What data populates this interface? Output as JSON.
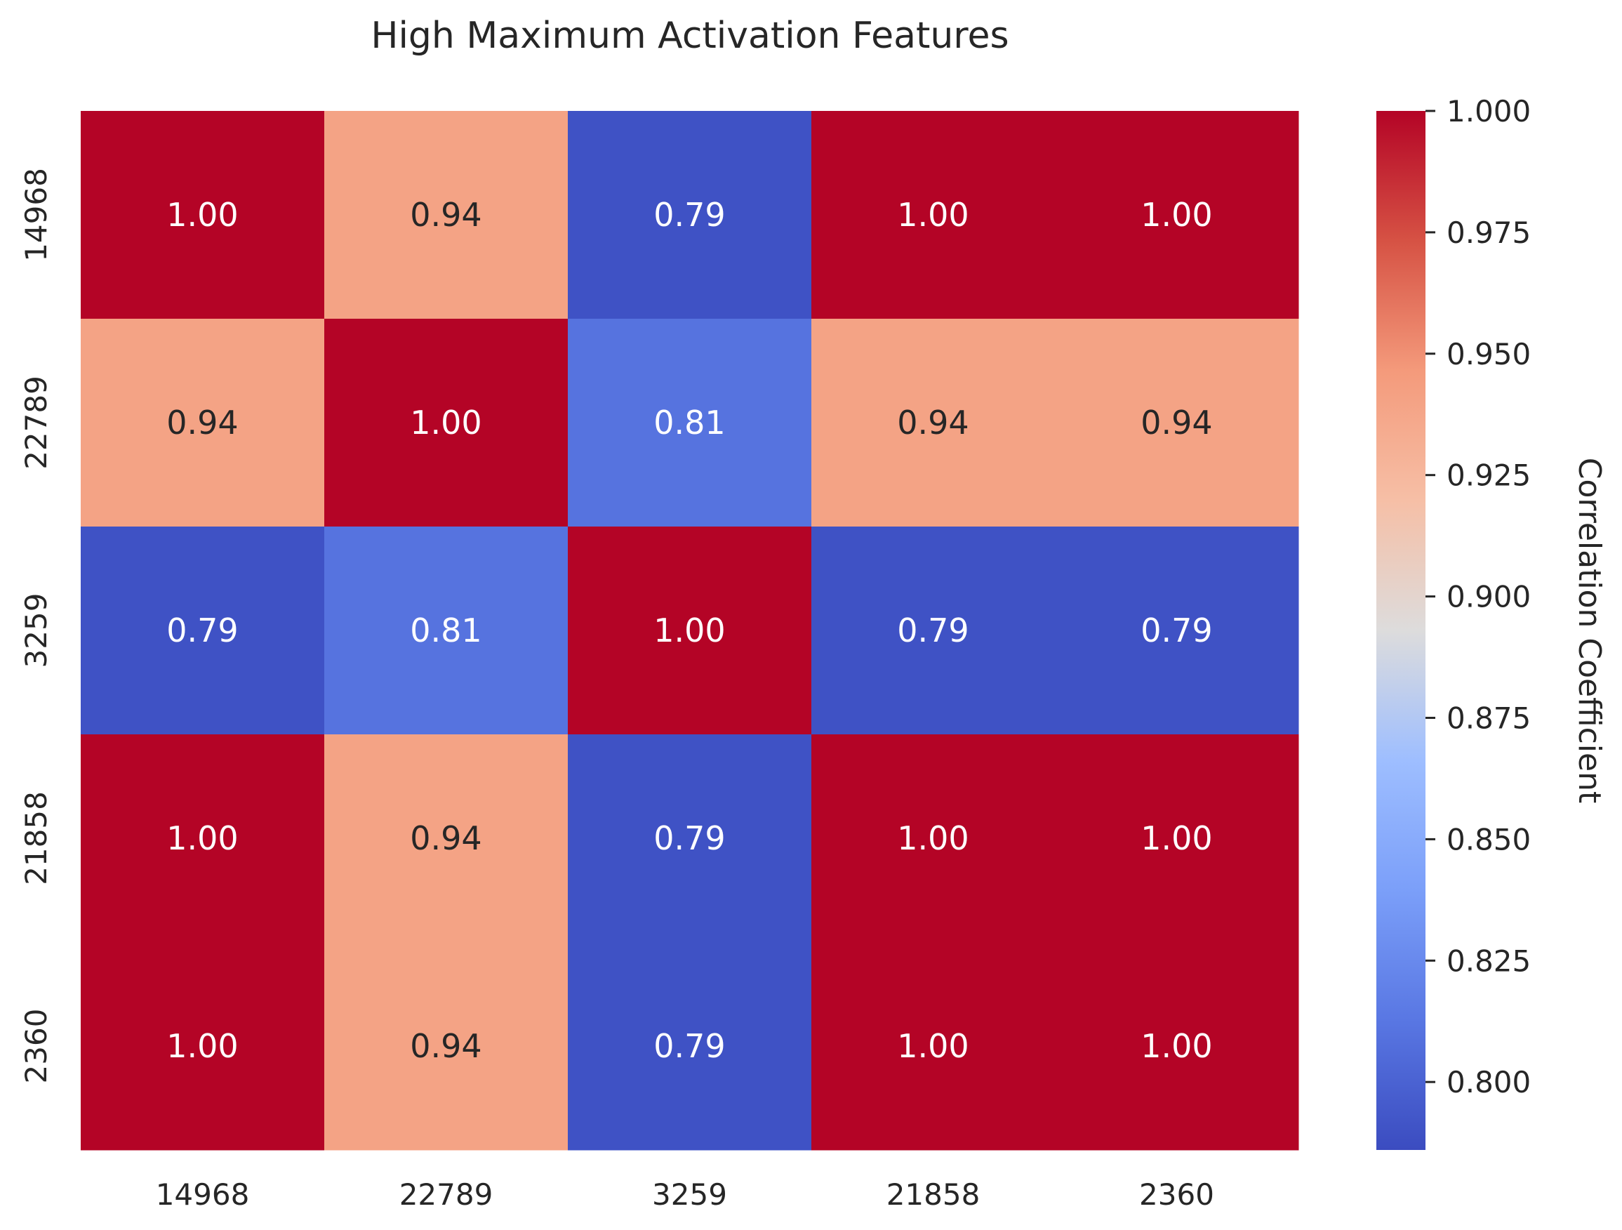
{
  "chart_data": {
    "type": "heatmap",
    "title": "High Maximum Activation Features",
    "x_categories": [
      "14968",
      "22789",
      "3259",
      "21858",
      "2360"
    ],
    "y_categories": [
      "14968",
      "22789",
      "3259",
      "21858",
      "2360"
    ],
    "values": [
      [
        1.0,
        0.94,
        0.79,
        1.0,
        1.0
      ],
      [
        0.94,
        1.0,
        0.81,
        0.94,
        0.94
      ],
      [
        0.79,
        0.81,
        1.0,
        0.79,
        0.79
      ],
      [
        1.0,
        0.94,
        0.79,
        1.0,
        1.0
      ],
      [
        1.0,
        0.94,
        0.79,
        1.0,
        1.0
      ]
    ],
    "display_values": [
      [
        "1.00",
        "0.94",
        "0.79",
        "1.00",
        "1.00"
      ],
      [
        "0.94",
        "1.00",
        "0.81",
        "0.94",
        "0.94"
      ],
      [
        "0.79",
        "0.81",
        "1.00",
        "0.79",
        "0.79"
      ],
      [
        "1.00",
        "0.94",
        "0.79",
        "1.00",
        "1.00"
      ],
      [
        "1.00",
        "0.94",
        "0.79",
        "1.00",
        "1.00"
      ]
    ],
    "colormap": "coolwarm",
    "colorbar": {
      "label": "Correlation Coefficient",
      "range": [
        0.786,
        1.0
      ],
      "ticks": [
        0.8,
        0.825,
        0.85,
        0.875,
        0.9,
        0.925,
        0.95,
        0.975,
        1.0
      ],
      "tick_labels": [
        "0.800",
        "0.825",
        "0.850",
        "0.875",
        "0.900",
        "0.925",
        "0.950",
        "0.975",
        "1.000"
      ]
    }
  }
}
